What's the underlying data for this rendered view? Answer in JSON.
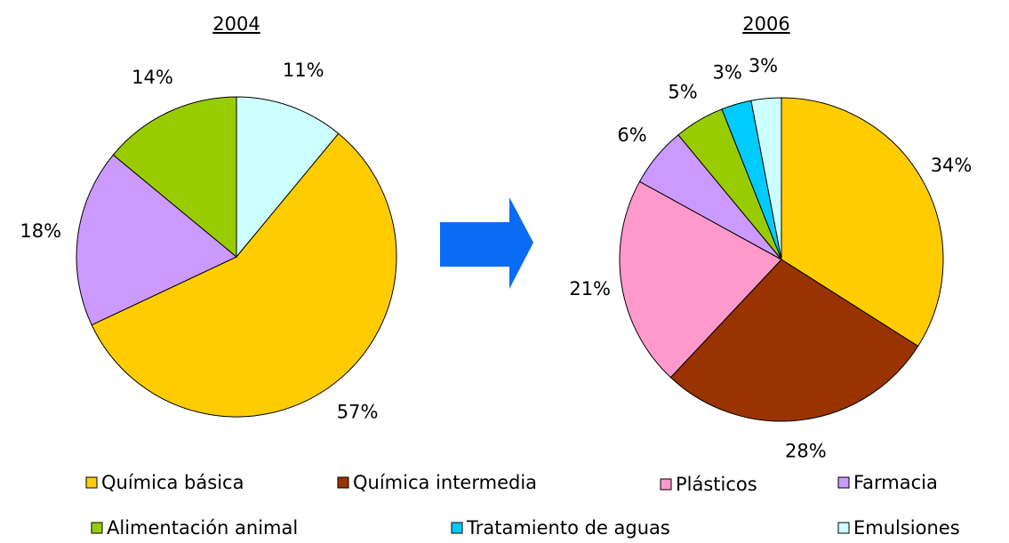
{
  "chart_data": [
    {
      "type": "pie",
      "title": "2004",
      "categories": [
        "Emulsiones",
        "Química básica",
        "Farmacia",
        "Alimentación animal"
      ],
      "values": [
        11,
        57,
        18,
        14
      ],
      "value_labels": [
        "11%",
        "57%",
        "18%",
        "14%"
      ],
      "colors": [
        "#CCFFFF",
        "#FFCC00",
        "#CC99FF",
        "#99CC00"
      ]
    },
    {
      "type": "pie",
      "title": "2006",
      "categories": [
        "Química básica",
        "Química intermedia",
        "Plásticos",
        "Farmacia",
        "Alimentación animal",
        "Tratamiento de aguas",
        "Emulsiones"
      ],
      "values": [
        34,
        28,
        21,
        6,
        5,
        3,
        3
      ],
      "value_labels": [
        "34%",
        "28%",
        "21%",
        "6%",
        "5%",
        "3%",
        "3%"
      ],
      "colors": [
        "#FFCC00",
        "#993300",
        "#FF99CC",
        "#CC99FF",
        "#99CC00",
        "#00CCFF",
        "#CCFFFF"
      ]
    }
  ]
}
